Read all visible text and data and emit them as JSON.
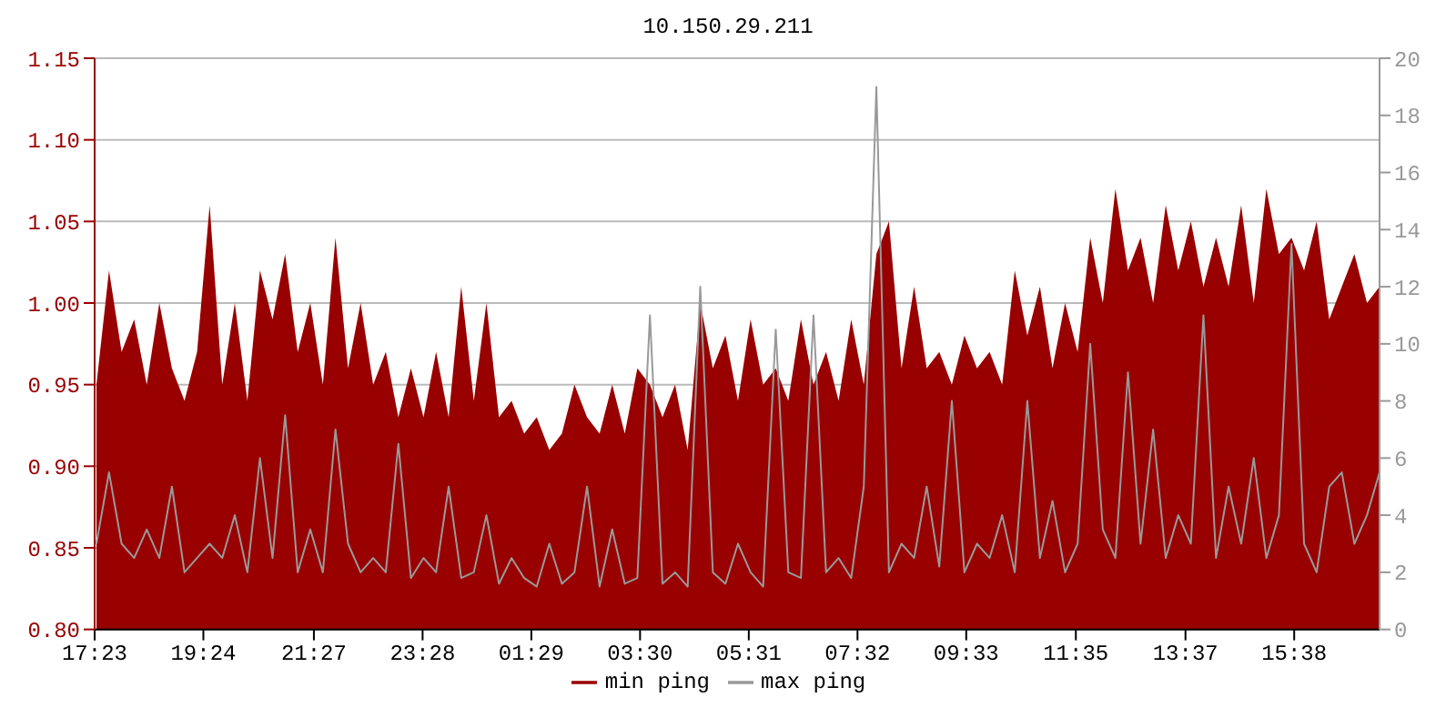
{
  "chart_data": {
    "type": "area",
    "title": "10.150.29.211",
    "x": [
      "--01-01T17:25",
      "--01-01T17:39",
      "--01-01T17:53",
      "--01-01T18:07",
      "--01-01T18:21",
      "--01-01T18:35",
      "--01-01T18:49",
      "--01-01T19:03",
      "--01-01T19:17",
      "--01-01T19:31",
      "--01-01T19:45",
      "--01-01T19:59",
      "--01-01T20:13",
      "--01-01T20:27",
      "--01-01T20:41",
      "--01-01T20:55",
      "--01-01T21:09",
      "--01-01T21:23",
      "--01-01T21:37",
      "--01-01T21:51",
      "--01-01T22:05",
      "--01-01T22:19",
      "--01-01T22:33",
      "--01-01T22:47",
      "--01-01T23:01",
      "--01-01T23:15",
      "--01-01T23:29",
      "--01-01T23:43",
      "--01-01T23:57",
      "--01-02T00:11",
      "--01-02T00:25",
      "--01-02T00:39",
      "--01-02T00:53",
      "--01-02T01:07",
      "--01-02T01:21",
      "--01-02T01:35",
      "--01-02T01:49",
      "--01-02T02:03",
      "--01-02T02:17",
      "--01-02T02:31",
      "--01-02T02:45",
      "--01-02T02:59",
      "--01-02T03:13",
      "--01-02T03:27",
      "--01-02T03:41",
      "--01-02T03:55",
      "--01-02T04:09",
      "--01-02T04:23",
      "--01-02T04:37",
      "--01-02T04:51",
      "--01-02T05:05",
      "--01-02T05:19",
      "--01-02T05:33",
      "--01-02T05:47",
      "--01-02T06:01",
      "--01-02T06:15",
      "--01-02T06:29",
      "--01-02T06:43",
      "--01-02T06:57",
      "--01-02T07:11",
      "--01-02T07:25",
      "--01-02T07:39",
      "--01-02T07:53",
      "--01-02T08:07",
      "--01-02T08:21",
      "--01-02T08:35",
      "--01-02T08:49",
      "--01-02T09:03",
      "--01-02T09:17",
      "--01-02T09:31",
      "--01-02T09:45",
      "--01-02T09:59",
      "--01-02T10:13",
      "--01-02T10:27",
      "--01-02T10:41",
      "--01-02T10:55",
      "--01-02T11:09",
      "--01-02T11:23",
      "--01-02T11:37",
      "--01-02T11:51",
      "--01-02T12:05",
      "--01-02T12:19",
      "--01-02T12:33",
      "--01-02T12:47",
      "--01-02T13:01",
      "--01-02T13:15",
      "--01-02T13:29",
      "--01-02T13:43",
      "--01-02T13:57",
      "--01-02T14:11",
      "--01-02T14:25",
      "--01-02T14:39",
      "--01-02T14:53",
      "--01-02T15:07",
      "--01-02T15:21",
      "--01-02T15:35",
      "--01-02T15:49",
      "--01-02T16:03",
      "--01-02T16:17",
      "--01-02T16:31",
      "--01-02T16:45",
      "--01-02T16:59",
      "--01-02T17:13"
    ],
    "series": [
      {
        "name": "min ping",
        "color": "#990000",
        "values": [
          0.95,
          1.02,
          0.97,
          0.99,
          0.95,
          1.0,
          0.96,
          0.94,
          0.97,
          1.06,
          0.95,
          1.0,
          0.94,
          1.02,
          0.99,
          1.03,
          0.97,
          1.0,
          0.95,
          1.04,
          0.96,
          1.0,
          0.95,
          0.97,
          0.93,
          0.96,
          0.93,
          0.97,
          0.93,
          1.01,
          0.94,
          1.0,
          0.93,
          0.94,
          0.92,
          0.93,
          0.91,
          0.92,
          0.95,
          0.93,
          0.92,
          0.95,
          0.92,
          0.96,
          0.95,
          0.93,
          0.95,
          0.91,
          1.0,
          0.96,
          0.98,
          0.94,
          0.99,
          0.95,
          0.96,
          0.94,
          0.99,
          0.95,
          0.97,
          0.94,
          0.99,
          0.95,
          1.03,
          1.05,
          0.96,
          1.01,
          0.96,
          0.97,
          0.95,
          0.98,
          0.96,
          0.97,
          0.95,
          1.02,
          0.98,
          1.01,
          0.96,
          1.0,
          0.97,
          1.04,
          1.0,
          1.07,
          1.02,
          1.04,
          1.0,
          1.06,
          1.02,
          1.05,
          1.01,
          1.04,
          1.01,
          1.06,
          1.0,
          1.07,
          1.03,
          1.04,
          1.02,
          1.05,
          0.99,
          1.01,
          1.03,
          1.0,
          1.01
        ]
      },
      {
        "name": "max ping",
        "type": "line",
        "axis": "y2",
        "color": "#999999",
        "values": [
          3,
          5.5,
          3,
          2.5,
          3.5,
          2.5,
          5,
          2,
          2.5,
          3,
          2.5,
          4,
          2,
          6,
          2.5,
          7.5,
          2,
          3.5,
          2,
          7,
          3,
          2,
          2.5,
          2,
          6.5,
          1.8,
          2.5,
          2,
          5,
          1.8,
          2,
          4,
          1.6,
          2.5,
          1.8,
          1.5,
          3,
          1.6,
          2,
          5,
          1.5,
          3.5,
          1.6,
          1.8,
          11,
          1.6,
          2,
          1.5,
          12,
          2,
          1.6,
          3,
          2,
          1.5,
          10.5,
          2,
          1.8,
          11,
          2,
          2.5,
          1.8,
          5,
          19,
          2,
          3,
          2.5,
          5,
          2.2,
          8,
          2,
          3,
          2.5,
          4,
          2,
          8,
          2.5,
          4.5,
          2,
          3,
          10,
          3.5,
          2.5,
          9,
          3,
          7,
          2.5,
          4,
          3,
          11,
          2.5,
          5,
          3,
          6,
          2.5,
          4,
          13.5,
          3,
          2,
          5,
          5.5,
          3,
          4,
          5.5
        ]
      }
    ],
    "xlim": [
      "--01-01T17:23",
      "--01-02T17:13"
    ],
    "xticks": [
      {
        "value": "--01-01T17:23",
        "label": "17:23"
      },
      {
        "value": "--01-01T19:24",
        "label": "19:24"
      },
      {
        "value": "--01-01T21:27",
        "label": "21:27"
      },
      {
        "value": "--01-01T23:28",
        "label": "23:28"
      },
      {
        "value": "--01-02T01:29",
        "label": "01:29"
      },
      {
        "value": "--01-02T03:30",
        "label": "03:30"
      },
      {
        "value": "--01-02T05:31",
        "label": "05:31"
      },
      {
        "value": "--01-02T07:32",
        "label": "07:32"
      },
      {
        "value": "--01-02T09:33",
        "label": "09:33"
      },
      {
        "value": "--01-02T11:35",
        "label": "11:35"
      },
      {
        "value": "--01-02T13:37",
        "label": "13:37"
      },
      {
        "value": "--01-02T15:38",
        "label": "15:38"
      }
    ],
    "ylim": [
      0.8,
      1.15
    ],
    "yticks": [
      {
        "value": 0.8,
        "label": "0.80"
      },
      {
        "value": 0.85,
        "label": "0.85"
      },
      {
        "value": 0.9,
        "label": "0.90"
      },
      {
        "value": 0.95,
        "label": "0.95"
      },
      {
        "value": 1.0,
        "label": "1.00"
      },
      {
        "value": 1.05,
        "label": "1.05"
      },
      {
        "value": 1.1,
        "label": "1.10"
      },
      {
        "value": 1.15,
        "label": "1.15"
      }
    ],
    "y2lim": [
      0,
      20
    ],
    "y2ticks": [
      0,
      2,
      4,
      6,
      8,
      10,
      12,
      14,
      16,
      18,
      20
    ],
    "grid": "y",
    "legend": "bottom",
    "marker": "none",
    "line_style": "solid"
  }
}
